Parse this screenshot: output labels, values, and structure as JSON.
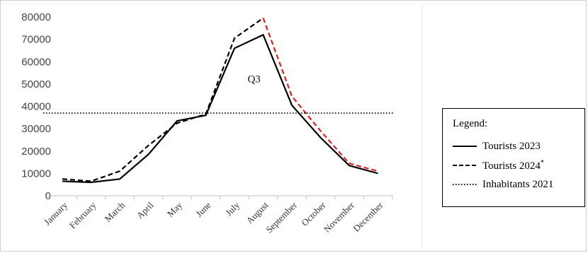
{
  "chart_data": {
    "type": "line",
    "categories": [
      "January",
      "February",
      "March",
      "April",
      "May",
      "June",
      "July",
      "August",
      "September",
      "October",
      "November",
      "December"
    ],
    "ylim": [
      0,
      80000
    ],
    "yticks": [
      0,
      10000,
      20000,
      30000,
      40000,
      50000,
      60000,
      70000,
      80000
    ],
    "ytick_labels": [
      "0",
      "10000",
      "20000",
      "30000",
      "40000",
      "50000",
      "60000",
      "70000",
      "80000"
    ],
    "series": [
      {
        "name": "Tourists 2023",
        "style": "solid",
        "color": "#000000",
        "values": [
          6500,
          6000,
          7500,
          18500,
          33500,
          36000,
          66000,
          72000,
          40500,
          26000,
          13500,
          10000
        ]
      },
      {
        "name": "Tourists 2024",
        "name_suffix": "*",
        "style": "dashed",
        "color": "#000000",
        "highlight_color": "#e02020",
        "highlight_from_index": 7,
        "values": [
          7500,
          6500,
          11000,
          22500,
          32500,
          36500,
          70500,
          79500,
          44500,
          29000,
          14500,
          11000
        ]
      },
      {
        "name": "Inhabitants 2021",
        "style": "dotted",
        "color": "#000000",
        "values": [
          37000,
          37000,
          37000,
          37000,
          37000,
          37000,
          37000,
          37000,
          37000,
          37000,
          37000,
          37000
        ]
      }
    ],
    "annotations": [
      {
        "text": "Q3",
        "x": 6.9,
        "y": 52000
      }
    ],
    "legend": {
      "title": "Legend:",
      "placement": "right"
    },
    "grid": false
  }
}
